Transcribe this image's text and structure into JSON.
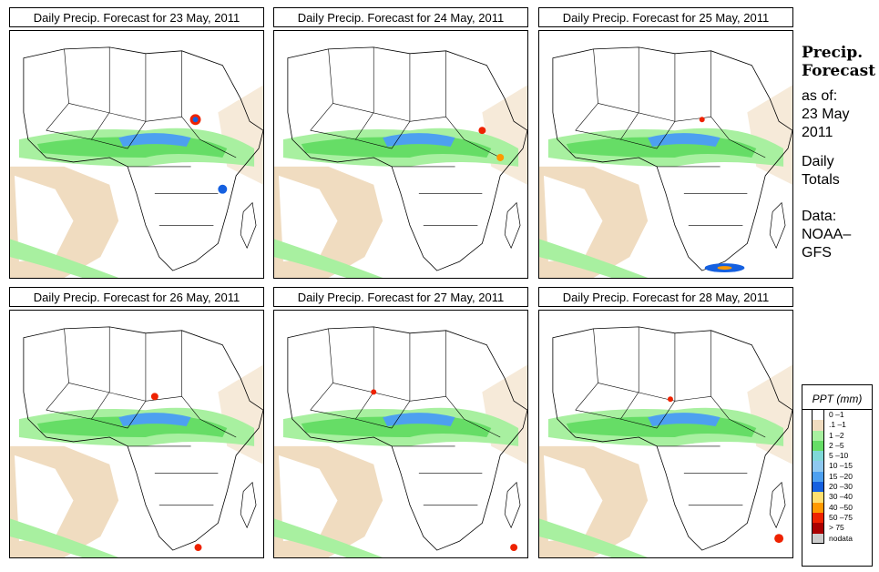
{
  "panels": [
    {
      "title": "Daily Precip. Forecast for  23 May, 2011"
    },
    {
      "title": "Daily Precip. Forecast for  24 May, 2011"
    },
    {
      "title": "Daily Precip. Forecast for  25 May, 2011"
    },
    {
      "title": "Daily Precip. Forecast for  26 May, 2011"
    },
    {
      "title": "Daily Precip. Forecast for  27 May, 2011"
    },
    {
      "title": "Daily Precip. Forecast for  28 May, 2011"
    }
  ],
  "sidebar": {
    "title_line1": "Precip.",
    "title_line2": "Forecast",
    "asof": "as of:",
    "date_line1": "23 May",
    "date_line2": "2011",
    "totals_line1": "Daily",
    "totals_line2": "Totals",
    "data_line1": "Data:",
    "data_line2": "NOAA–",
    "data_line3": "GFS"
  },
  "legend": {
    "title": "PPT (mm)",
    "items": [
      {
        "label": "0 –1",
        "color": "#ffffff"
      },
      {
        "label": ".1 –1",
        "color": "#f0dcc0"
      },
      {
        "label": "1 –2",
        "color": "#a8f0a0"
      },
      {
        "label": "2 –5",
        "color": "#66dd66"
      },
      {
        "label": "5 –10",
        "color": "#7fd8d8"
      },
      {
        "label": "10 –15",
        "color": "#8ec8f0"
      },
      {
        "label": "15 –20",
        "color": "#4da0f0"
      },
      {
        "label": "20 –30",
        "color": "#1560e0"
      },
      {
        "label": "30 –40",
        "color": "#ffe070"
      },
      {
        "label": "40 –50",
        "color": "#ff9900"
      },
      {
        "label": "50 –75",
        "color": "#ee2200"
      },
      {
        "label": "> 75",
        "color": "#aa0000"
      },
      {
        "label": "nodata",
        "color": "#cccccc"
      }
    ]
  }
}
